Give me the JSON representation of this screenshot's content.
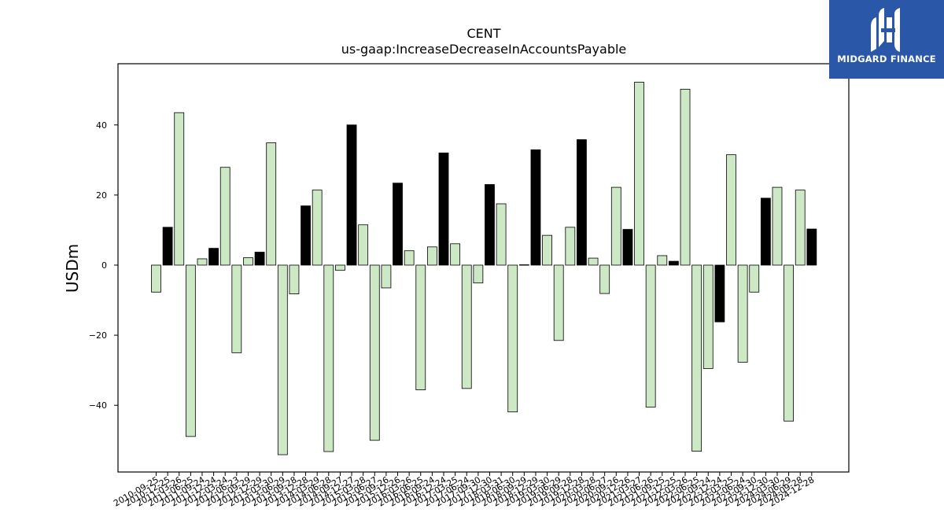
{
  "chart_data": {
    "type": "bar",
    "title": "CENT",
    "subtitle": "us-gaap:IncreaseDecreaseInAccountsPayable",
    "xlabel": "",
    "ylabel": "USDm",
    "ylim": [
      -59,
      57
    ],
    "yticks": [
      -40,
      -20,
      0,
      20,
      40
    ],
    "ytick_labels": [
      "−40",
      "−20",
      "0",
      "20",
      "40"
    ],
    "grid": false,
    "colors": {
      "quarter": "#cce8c4",
      "annual": "#000000",
      "edge": "#000000"
    },
    "categories": [
      "2010-09-25",
      "2010-12-25",
      "2011-03-26",
      "2011-06-25",
      "2011-09-24",
      "2011-12-24",
      "2012-03-24",
      "2012-06-23",
      "2012-09-29",
      "2012-12-29",
      "2013-03-30",
      "2013-06-29",
      "2013-09-28",
      "2013-12-28",
      "2014-03-29",
      "2014-06-28",
      "2014-09-27",
      "2014-12-27",
      "2015-03-28",
      "2015-06-27",
      "2015-09-26",
      "2015-12-26",
      "2016-03-26",
      "2016-06-25",
      "2016-09-24",
      "2016-12-24",
      "2017-03-25",
      "2017-06-24",
      "2017-09-30",
      "2017-12-30",
      "2018-03-31",
      "2018-06-30",
      "2018-09-29",
      "2018-12-29",
      "2019-03-30",
      "2019-06-29",
      "2019-09-28",
      "2019-12-28",
      "2020-03-28",
      "2020-06-27",
      "2020-09-26",
      "2020-12-26",
      "2021-03-27",
      "2021-06-26",
      "2021-09-25",
      "2021-12-25",
      "2022-03-26",
      "2022-06-25",
      "2022-09-24",
      "2022-12-24",
      "2023-03-25",
      "2023-06-24",
      "2023-09-30",
      "2023-12-30",
      "2024-03-30",
      "2024-06-29",
      "2024-09-28",
      "2024-12-28"
    ],
    "values": [
      -7.7,
      10.8,
      43.5,
      -48.9,
      1.8,
      4.8,
      27.9,
      -25.0,
      2.1,
      3.7,
      34.9,
      -54.1,
      -8.2,
      16.9,
      21.4,
      -53.2,
      -1.5,
      40.0,
      11.5,
      -50.0,
      -6.5,
      23.4,
      4.1,
      -35.6,
      5.2,
      32.0,
      6.1,
      -35.2,
      -5.1,
      23.0,
      17.5,
      -41.9,
      0.1,
      32.9,
      8.5,
      -21.5,
      10.8,
      35.8,
      2.0,
      -8.1,
      22.2,
      10.2,
      52.2,
      -40.5,
      2.7,
      1.1,
      50.2,
      -53.1,
      -29.5,
      -16.2,
      31.5,
      -27.7,
      -7.7,
      19.1,
      22.2,
      -44.5,
      21.4,
      10.3
    ],
    "annual": [
      false,
      true,
      false,
      false,
      false,
      true,
      false,
      false,
      false,
      true,
      false,
      false,
      false,
      true,
      false,
      false,
      false,
      true,
      false,
      false,
      false,
      true,
      false,
      false,
      false,
      true,
      false,
      false,
      false,
      true,
      false,
      false,
      false,
      true,
      false,
      false,
      false,
      true,
      false,
      false,
      false,
      true,
      false,
      false,
      false,
      true,
      false,
      false,
      false,
      true,
      false,
      false,
      false,
      true,
      false,
      false,
      false,
      true
    ]
  },
  "logo": {
    "text": "MIDGARD FINANCE",
    "icon": "midgard-finance-logo-icon"
  }
}
